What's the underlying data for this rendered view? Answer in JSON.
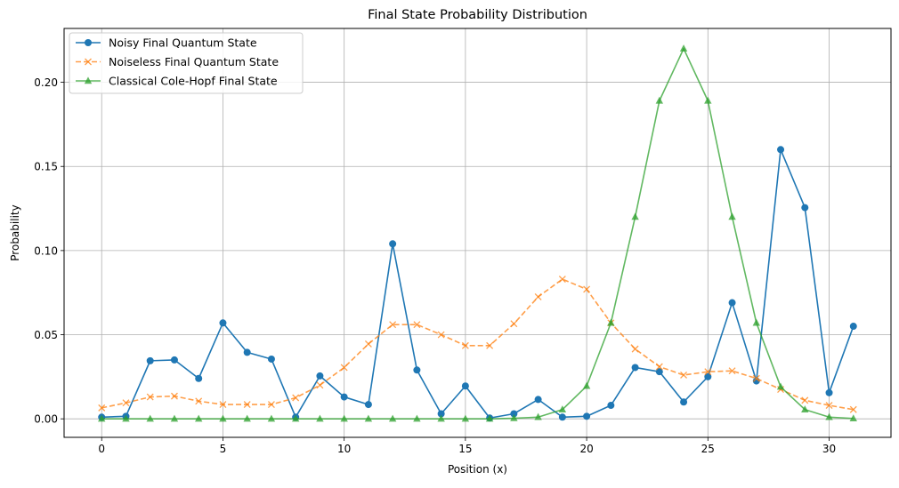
{
  "chart_data": {
    "type": "line",
    "title": "Final State Probability Distribution",
    "xlabel": "Position (x)",
    "ylabel": "Probability",
    "xlim": [
      -1.55,
      32.55
    ],
    "ylim": [
      -0.011,
      0.232
    ],
    "xticks": [
      0,
      5,
      10,
      15,
      20,
      25,
      30
    ],
    "xtick_labels": [
      "0",
      "5",
      "10",
      "15",
      "20",
      "25",
      "30"
    ],
    "yticks": [
      0,
      0.05,
      0.1,
      0.15,
      0.2
    ],
    "ytick_labels": [
      "0.00",
      "0.05",
      "0.10",
      "0.15",
      "0.20"
    ],
    "grid": true,
    "legend_position": "upper-left",
    "x": [
      0,
      1,
      2,
      3,
      4,
      5,
      6,
      7,
      8,
      9,
      10,
      11,
      12,
      13,
      14,
      15,
      16,
      17,
      18,
      19,
      20,
      21,
      22,
      23,
      24,
      25,
      26,
      27,
      28,
      29,
      30,
      31
    ],
    "series": [
      {
        "name": "Noisy Final Quantum State",
        "color": "#1f77b4",
        "marker": "circle",
        "linestyle": "solid",
        "values": [
          0.001,
          0.0015,
          0.0345,
          0.035,
          0.024,
          0.057,
          0.0395,
          0.0355,
          0.001,
          0.0255,
          0.013,
          0.0085,
          0.104,
          0.029,
          0.003,
          0.0195,
          0.0005,
          0.003,
          0.0115,
          0.001,
          0.0015,
          0.008,
          0.0305,
          0.028,
          0.01,
          0.025,
          0.069,
          0.0225,
          0.16,
          0.1255,
          0.0155,
          0.055
        ]
      },
      {
        "name": "Noiseless Final Quantum State",
        "color": "#ff7f0e",
        "marker": "x",
        "linestyle": "dashed",
        "values": [
          0.0065,
          0.0095,
          0.013,
          0.0135,
          0.0105,
          0.0085,
          0.0085,
          0.0085,
          0.0125,
          0.02,
          0.0305,
          0.0445,
          0.056,
          0.056,
          0.05,
          0.0435,
          0.0435,
          0.0565,
          0.0725,
          0.083,
          0.077,
          0.057,
          0.0415,
          0.031,
          0.026,
          0.028,
          0.0285,
          0.024,
          0.0175,
          0.011,
          0.008,
          0.0055
        ]
      },
      {
        "name": "Classical Cole-Hopf Final State",
        "color": "#2ca02c",
        "marker": "triangle",
        "linestyle": "solid",
        "values": [
          0,
          0,
          0,
          0,
          0,
          0,
          0,
          0,
          0,
          0,
          0,
          0,
          0,
          0,
          0,
          0,
          0,
          0.0003,
          0.001,
          0.0055,
          0.0195,
          0.057,
          0.12,
          0.189,
          0.22,
          0.189,
          0.12,
          0.057,
          0.019,
          0.0055,
          0.001,
          0.0002
        ]
      }
    ]
  }
}
